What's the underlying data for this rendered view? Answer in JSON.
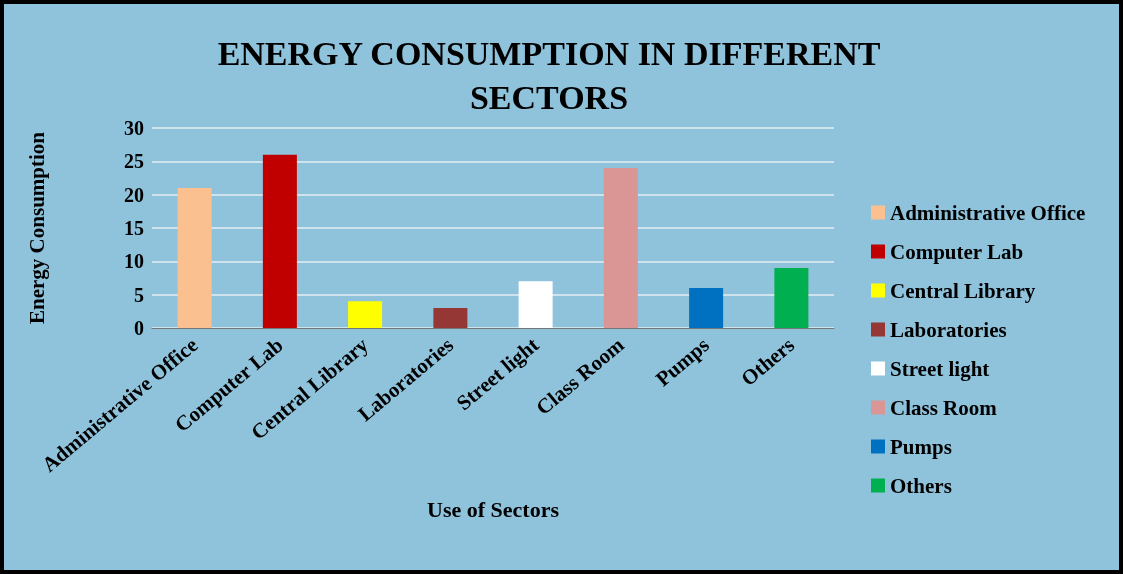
{
  "chart_data": {
    "type": "bar",
    "title": "ENERGY CONSUMPTION IN DIFFERENT\nSECTORS",
    "xlabel": "Use of Sectors",
    "ylabel": "Energy Consumption",
    "categories": [
      "Administrative Office",
      "Computer Lab",
      "Central Library",
      "Laboratories",
      "Street light",
      "Class Room",
      "Pumps",
      "Others"
    ],
    "series": [
      {
        "name": "Administrative Office",
        "color": "#fac090",
        "values": [
          21,
          null,
          null,
          null,
          null,
          null,
          null,
          null
        ]
      },
      {
        "name": "Computer Lab",
        "color": "#c00000",
        "values": [
          null,
          26,
          null,
          null,
          null,
          null,
          null,
          null
        ]
      },
      {
        "name": "Central Library",
        "color": "#ffff00",
        "values": [
          null,
          null,
          4,
          null,
          null,
          null,
          null,
          null
        ]
      },
      {
        "name": "Laboratories",
        "color": "#953735",
        "values": [
          null,
          null,
          null,
          3,
          null,
          null,
          null,
          null
        ]
      },
      {
        "name": "Street light",
        "color": "#ffffff",
        "values": [
          null,
          null,
          null,
          null,
          7,
          null,
          null,
          null
        ]
      },
      {
        "name": "Class Room",
        "color": "#d99694",
        "values": [
          null,
          null,
          null,
          null,
          null,
          24,
          null,
          null
        ]
      },
      {
        "name": "Pumps",
        "color": "#0070c0",
        "values": [
          null,
          null,
          null,
          null,
          null,
          null,
          6,
          null
        ]
      },
      {
        "name": "Others",
        "color": "#00b050",
        "values": [
          null,
          null,
          null,
          null,
          null,
          null,
          null,
          9
        ]
      }
    ],
    "ylim": [
      0,
      30
    ],
    "yticks": [
      0,
      5,
      10,
      15,
      20,
      25,
      30
    ],
    "grid": "y",
    "legend": "right"
  }
}
